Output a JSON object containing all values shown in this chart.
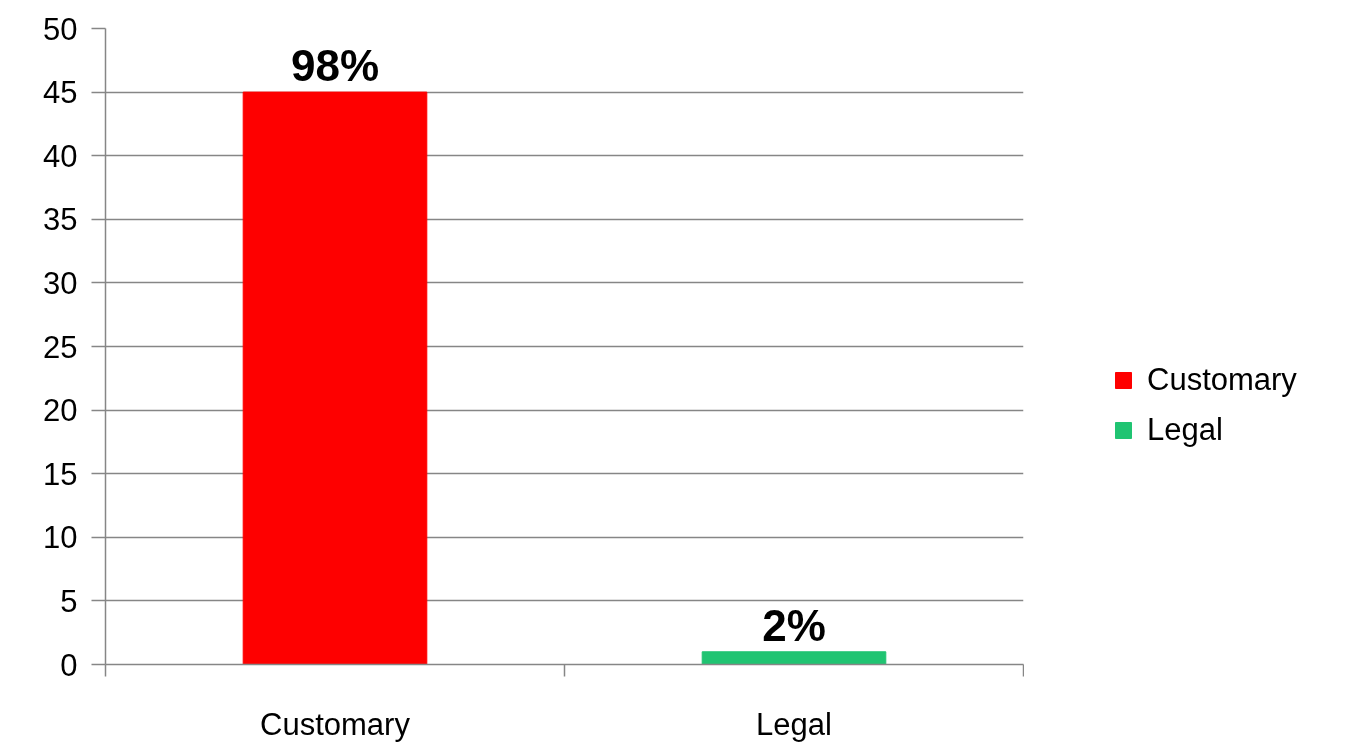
{
  "chart_data": {
    "type": "bar",
    "categories": [
      "Customary",
      "Legal"
    ],
    "series": [
      {
        "name": "Customary",
        "color": "#fe0000",
        "values": [
          45,
          null
        ]
      },
      {
        "name": "Legal",
        "color": "#20c472",
        "values": [
          null,
          1
        ]
      }
    ],
    "annotations": [
      {
        "text": "98%",
        "x": "Customary",
        "y": 45
      },
      {
        "text": "2%",
        "x": "Legal",
        "y": 1
      }
    ],
    "ylim": [
      0,
      50
    ],
    "yticks": [
      0,
      5,
      10,
      15,
      20,
      25,
      30,
      35,
      40,
      45,
      50
    ],
    "grid": "y",
    "legend": "right"
  }
}
